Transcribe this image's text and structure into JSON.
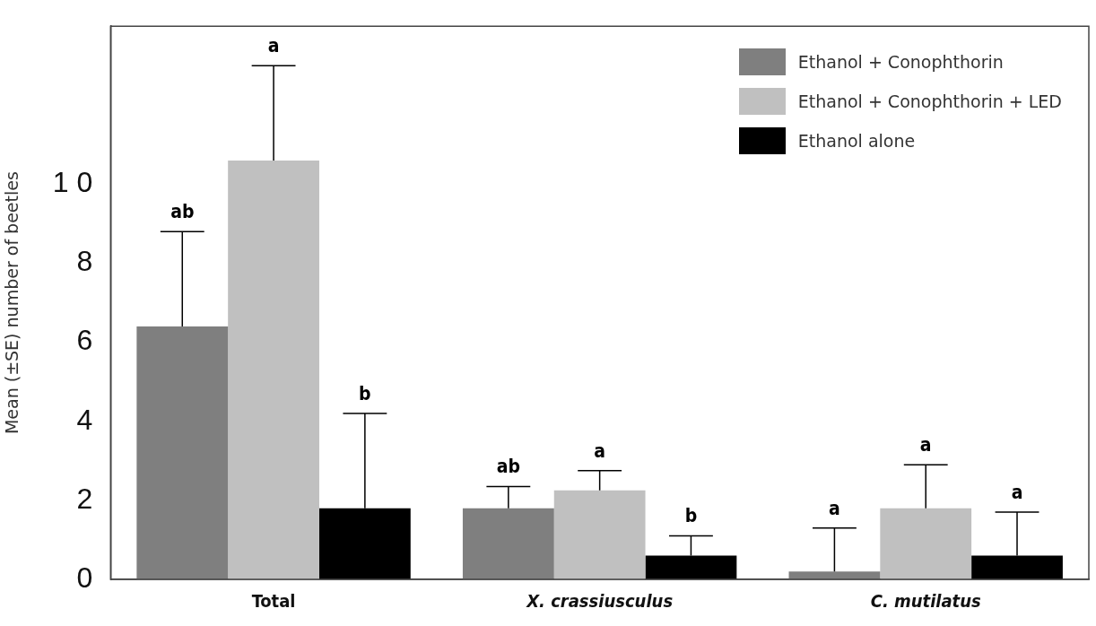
{
  "chart_data": {
    "type": "bar",
    "ylabel": "Mean (±SE) number of beetles",
    "categories": [
      "Total",
      "X. crassiusculus",
      "C. mutilatus"
    ],
    "series": [
      {
        "name": "Ethanol + Conophthorin",
        "color": "#7f7f7f",
        "values": [
          6.4,
          1.8,
          0.2
        ],
        "errors": [
          [
            6.4,
            8.8
          ],
          [
            1.8,
            2.35
          ],
          [
            0.2,
            1.3
          ]
        ]
      },
      {
        "name": "Ethanol + Conophthorin + LED",
        "color": "#c0c0c0",
        "values": [
          10.6,
          2.25,
          1.8
        ],
        "errors": [
          [
            10.6,
            13.0
          ],
          [
            2.25,
            2.75
          ],
          [
            1.8,
            2.9
          ]
        ]
      },
      {
        "name": "Ethanol alone",
        "color": "#000000",
        "values": [
          1.8,
          0.6,
          0.6
        ],
        "errors": [
          [
            1.8,
            4.2
          ],
          [
            0.6,
            1.1
          ],
          [
            0.6,
            1.7
          ]
        ]
      }
    ],
    "annotations": [
      "ab",
      "a",
      "b",
      "ab",
      "a",
      "b",
      "a",
      "a",
      "a"
    ],
    "ylim": [
      0,
      14
    ],
    "yticks": [
      0,
      2,
      4,
      6,
      8,
      {
        "value": 10,
        "label": "1 0"
      }
    ],
    "grid": false,
    "legend": "top right"
  }
}
